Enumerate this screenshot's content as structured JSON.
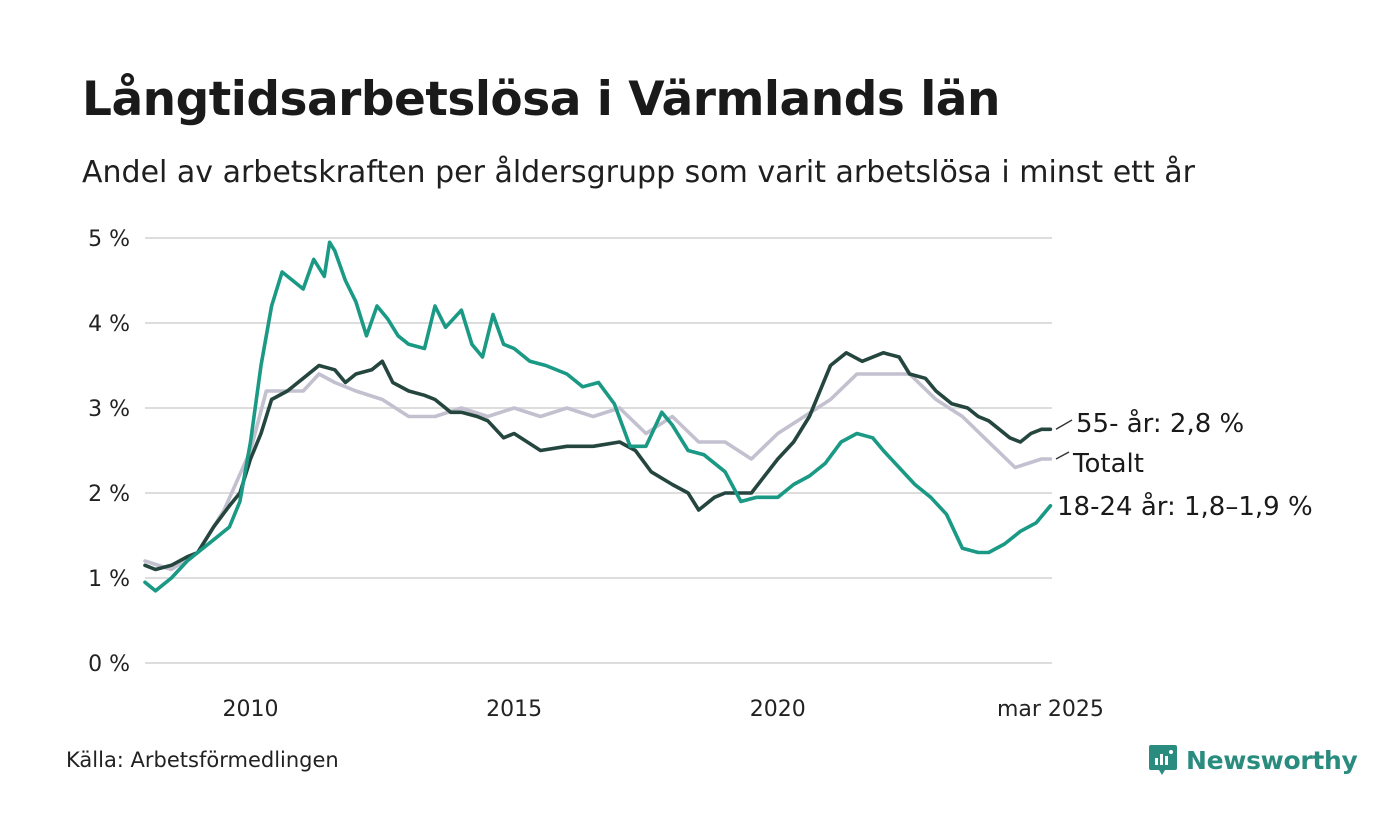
{
  "header": {
    "title": "Långtidsarbetslösa i Värmlands län",
    "subtitle": "Andel av arbetskraften per åldersgrupp som varit arbetslösa i minst ett år"
  },
  "footer": {
    "source": "Källa: Arbetsförmedlingen",
    "brand": "Newsworthy"
  },
  "colors": {
    "young": "#1a9985",
    "old": "#25463f",
    "total": "#c3c0cf",
    "grid": "#dddddd",
    "brand": "#2a8c7f"
  },
  "chart_data": {
    "type": "line",
    "title": "Långtidsarbetslösa i Värmlands län",
    "subtitle": "Andel av arbetskraften per åldersgrupp som varit arbetslösa i minst ett år",
    "xlabel": "",
    "ylabel": "",
    "ylim": [
      0,
      5
    ],
    "xlim": [
      2008.0,
      2025.2
    ],
    "grid": true,
    "y_ticks": [
      "0 %",
      "1 %",
      "2 %",
      "3 %",
      "4 %",
      "5 %"
    ],
    "x_ticks": [
      {
        "value": 2010,
        "label": "2010"
      },
      {
        "value": 2015,
        "label": "2015"
      },
      {
        "value": 2020,
        "label": "2020"
      },
      {
        "value": 2025.17,
        "label": "mar 2025"
      }
    ],
    "series": [
      {
        "name": "Totalt",
        "label": "Totalt",
        "color": "#c3c0cf",
        "x": [
          2008.0,
          2008.5,
          2009.0,
          2009.5,
          2010.0,
          2010.3,
          2010.6,
          2011.0,
          2011.3,
          2011.6,
          2012.0,
          2012.5,
          2013.0,
          2013.5,
          2014.0,
          2014.5,
          2015.0,
          2015.5,
          2016.0,
          2016.5,
          2017.0,
          2017.5,
          2018.0,
          2018.5,
          2019.0,
          2019.5,
          2020.0,
          2020.5,
          2021.0,
          2021.5,
          2022.0,
          2022.5,
          2023.0,
          2023.5,
          2024.0,
          2024.5,
          2025.0,
          2025.17
        ],
        "values": [
          1.2,
          1.1,
          1.3,
          1.8,
          2.5,
          3.2,
          3.2,
          3.2,
          3.4,
          3.3,
          3.2,
          3.1,
          2.9,
          2.9,
          3.0,
          2.9,
          3.0,
          2.9,
          3.0,
          2.9,
          3.0,
          2.7,
          2.9,
          2.6,
          2.6,
          2.4,
          2.7,
          2.9,
          3.1,
          3.4,
          3.4,
          3.4,
          3.1,
          2.9,
          2.6,
          2.3,
          2.4,
          2.4
        ]
      },
      {
        "name": "55- år",
        "label": "55- år: 2,8 %",
        "color": "#25463f",
        "x": [
          2008.0,
          2008.2,
          2008.5,
          2008.8,
          2009.0,
          2009.3,
          2009.6,
          2009.8,
          2010.0,
          2010.2,
          2010.4,
          2010.7,
          2011.0,
          2011.3,
          2011.6,
          2011.8,
          2012.0,
          2012.3,
          2012.5,
          2012.7,
          2013.0,
          2013.3,
          2013.5,
          2013.8,
          2014.0,
          2014.3,
          2014.5,
          2014.8,
          2015.0,
          2015.5,
          2016.0,
          2016.5,
          2017.0,
          2017.3,
          2017.6,
          2018.0,
          2018.3,
          2018.5,
          2018.8,
          2019.0,
          2019.5,
          2020.0,
          2020.3,
          2020.6,
          2021.0,
          2021.3,
          2021.6,
          2022.0,
          2022.3,
          2022.5,
          2022.8,
          2023.0,
          2023.3,
          2023.6,
          2023.8,
          2024.0,
          2024.2,
          2024.4,
          2024.6,
          2024.8,
          2025.0,
          2025.17
        ],
        "values": [
          1.15,
          1.1,
          1.15,
          1.25,
          1.3,
          1.6,
          1.85,
          2.0,
          2.4,
          2.7,
          3.1,
          3.2,
          3.35,
          3.5,
          3.45,
          3.3,
          3.4,
          3.45,
          3.55,
          3.3,
          3.2,
          3.15,
          3.1,
          2.95,
          2.95,
          2.9,
          2.85,
          2.65,
          2.7,
          2.5,
          2.55,
          2.55,
          2.6,
          2.5,
          2.25,
          2.1,
          2.0,
          1.8,
          1.95,
          2.0,
          2.0,
          2.4,
          2.6,
          2.9,
          3.5,
          3.65,
          3.55,
          3.65,
          3.6,
          3.4,
          3.35,
          3.2,
          3.05,
          3.0,
          2.9,
          2.85,
          2.75,
          2.65,
          2.6,
          2.7,
          2.75,
          2.75
        ]
      },
      {
        "name": "18-24 år",
        "label": "18-24 år: 1,8–1,9 %",
        "color": "#1a9985",
        "x": [
          2008.0,
          2008.2,
          2008.5,
          2008.8,
          2009.0,
          2009.3,
          2009.6,
          2009.8,
          2010.0,
          2010.2,
          2010.4,
          2010.6,
          2010.8,
          2011.0,
          2011.2,
          2011.4,
          2011.5,
          2011.6,
          2011.8,
          2012.0,
          2012.2,
          2012.4,
          2012.6,
          2012.8,
          2013.0,
          2013.3,
          2013.5,
          2013.7,
          2014.0,
          2014.2,
          2014.4,
          2014.6,
          2014.8,
          2015.0,
          2015.3,
          2015.6,
          2016.0,
          2016.3,
          2016.6,
          2016.9,
          2017.2,
          2017.5,
          2017.8,
          2018.0,
          2018.3,
          2018.6,
          2019.0,
          2019.3,
          2019.6,
          2020.0,
          2020.3,
          2020.6,
          2020.9,
          2021.2,
          2021.5,
          2021.8,
          2022.0,
          2022.3,
          2022.6,
          2022.9,
          2023.2,
          2023.5,
          2023.8,
          2024.0,
          2024.3,
          2024.6,
          2024.9,
          2025.17
        ],
        "values": [
          0.95,
          0.85,
          1.0,
          1.2,
          1.3,
          1.45,
          1.6,
          1.9,
          2.6,
          3.5,
          4.2,
          4.6,
          4.5,
          4.4,
          4.75,
          4.55,
          4.95,
          4.85,
          4.5,
          4.25,
          3.85,
          4.2,
          4.05,
          3.85,
          3.75,
          3.7,
          4.2,
          3.95,
          4.15,
          3.75,
          3.6,
          4.1,
          3.75,
          3.7,
          3.55,
          3.5,
          3.4,
          3.25,
          3.3,
          3.05,
          2.55,
          2.55,
          2.95,
          2.8,
          2.5,
          2.45,
          2.25,
          1.9,
          1.95,
          1.95,
          2.1,
          2.2,
          2.35,
          2.6,
          2.7,
          2.65,
          2.5,
          2.3,
          2.1,
          1.95,
          1.75,
          1.35,
          1.3,
          1.3,
          1.4,
          1.55,
          1.65,
          1.85
        ]
      }
    ]
  }
}
